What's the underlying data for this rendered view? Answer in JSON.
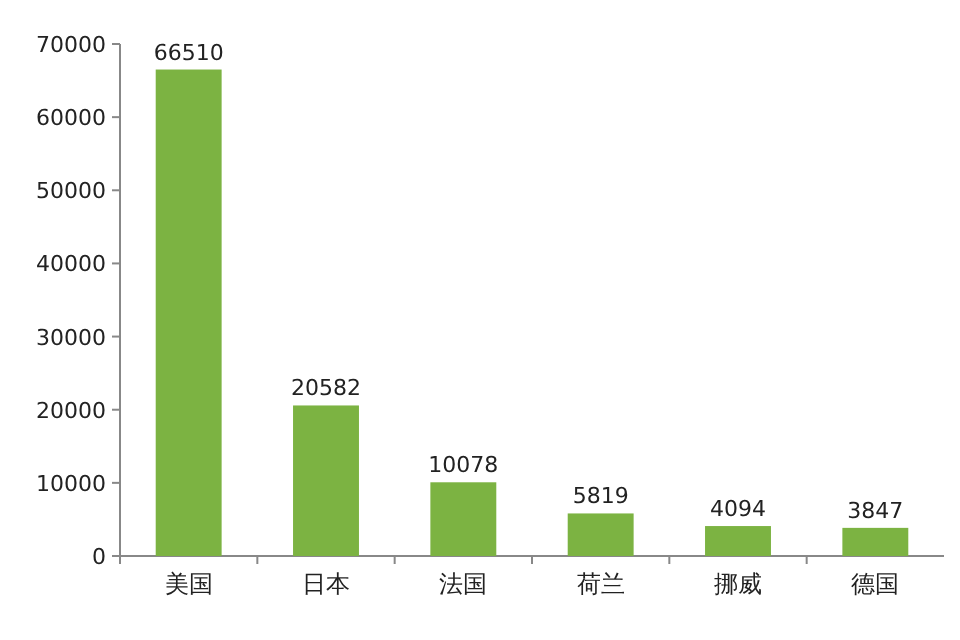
{
  "chart_data": {
    "type": "bar",
    "categories": [
      "美国",
      "日本",
      "法国",
      "荷兰",
      "挪威",
      "德国"
    ],
    "values": [
      66510,
      20582,
      10078,
      5819,
      4094,
      3847
    ],
    "color": "#7cb342",
    "ylim": [
      0,
      70000
    ],
    "yticks": [
      0,
      10000,
      20000,
      30000,
      40000,
      50000,
      60000,
      70000
    ],
    "data_labels": true
  }
}
